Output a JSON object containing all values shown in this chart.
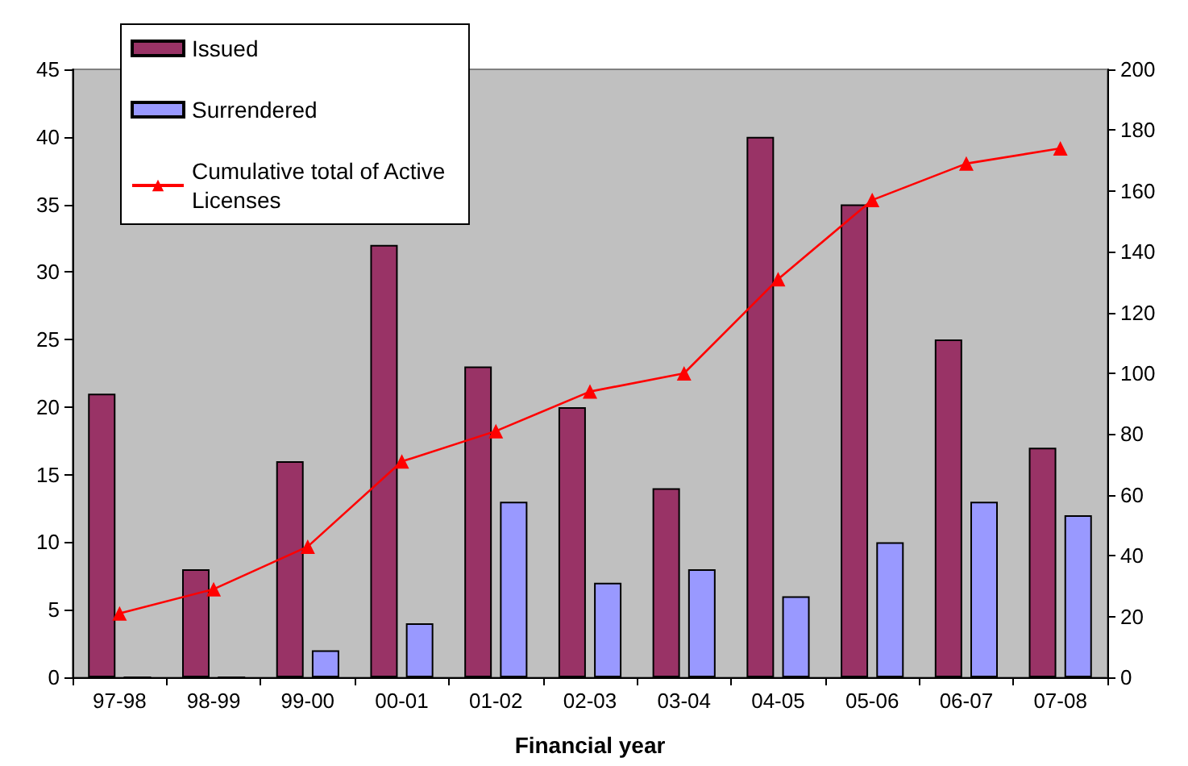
{
  "chart_data": {
    "type": "bar",
    "xlabel": "Financial year",
    "categories": [
      "97-98",
      "98-99",
      "99-00",
      "00-01",
      "01-02",
      "02-03",
      "03-04",
      "04-05",
      "05-06",
      "06-07",
      "07-08"
    ],
    "series": [
      {
        "name": "Issued",
        "color": "#993366",
        "values": [
          21,
          8,
          16,
          32,
          23,
          20,
          14,
          40,
          35,
          25,
          17
        ]
      },
      {
        "name": "Surrendered",
        "color": "#9999ff",
        "values": [
          0,
          0,
          2,
          4,
          13,
          7,
          8,
          6,
          10,
          13,
          12
        ]
      },
      {
        "name": "Cumulative total of Active\nLicenses",
        "type": "line",
        "axis": "y2",
        "color": "#ff0000",
        "marker": "triangle",
        "values": [
          21,
          29,
          43,
          71,
          81,
          94,
          100,
          131,
          157,
          169,
          174
        ]
      }
    ],
    "ylim": [
      0,
      45
    ],
    "yticks": [
      0,
      5,
      10,
      15,
      20,
      25,
      30,
      35,
      40,
      45
    ],
    "y2lim": [
      0,
      200
    ],
    "y2ticks": [
      0,
      20,
      40,
      60,
      80,
      100,
      120,
      140,
      160,
      180,
      200
    ],
    "grid": false,
    "legend": "top left"
  }
}
